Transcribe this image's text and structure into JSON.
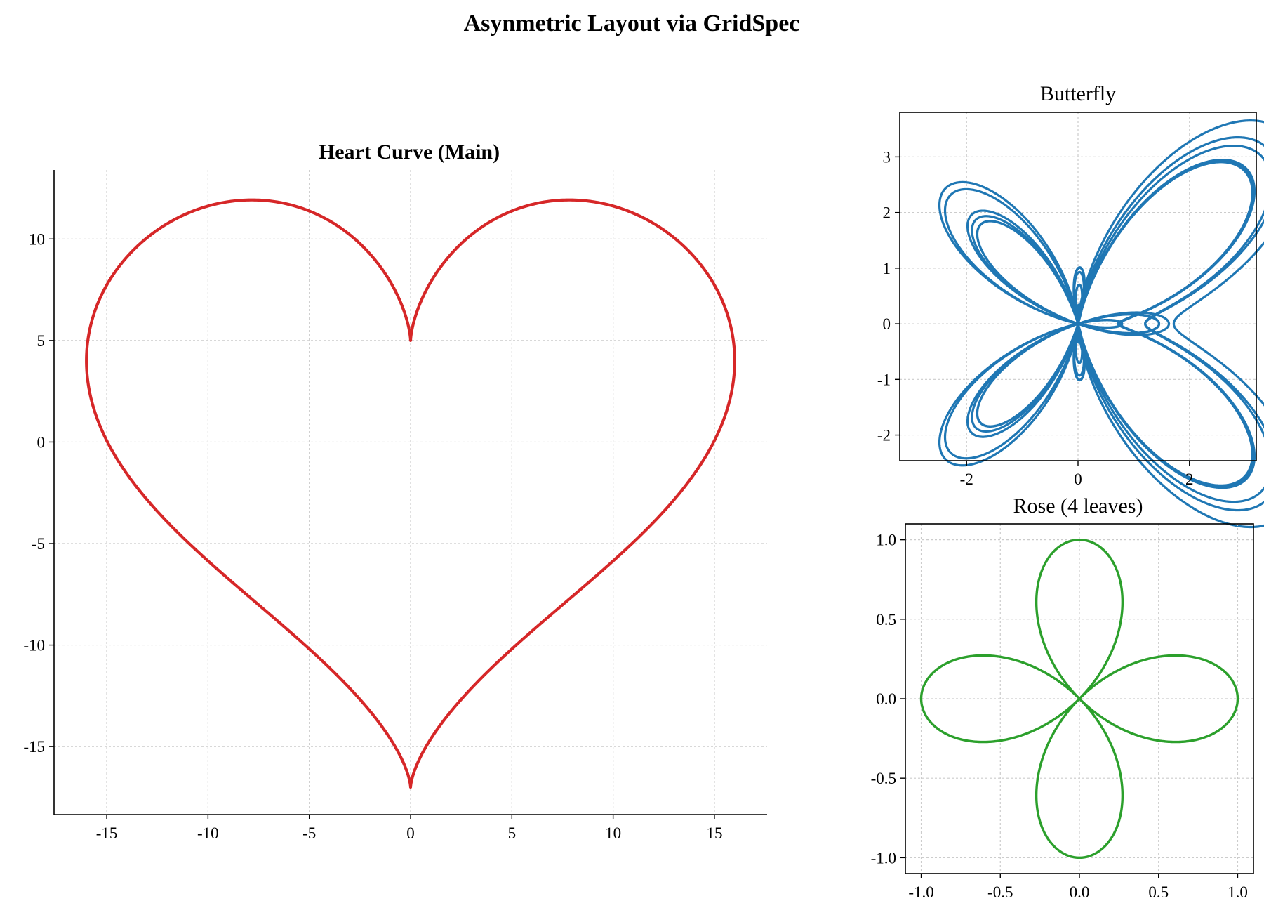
{
  "figure": {
    "suptitle": "Asynmetric Layout via GridSpec"
  },
  "chart_data": [
    {
      "id": "heart",
      "type": "line",
      "title": "Heart Curve (Main)",
      "title_bold": true,
      "function": "x = 16 sin^3(t), y = 13 cos t - 5 cos 2t - 2 cos 3t - cos 4t, t in [0, 2π]",
      "color": "#d62728",
      "xlim": [
        -17.6,
        17.6
      ],
      "ylim": [
        -18.35,
        13.4
      ],
      "xticks": [
        -15,
        -10,
        -5,
        0,
        5,
        10,
        15
      ],
      "xtick_labels": [
        "-15",
        "-10",
        "-5",
        "0",
        "5",
        "10",
        "15"
      ],
      "yticks": [
        -15,
        -10,
        -5,
        0,
        5,
        10
      ],
      "ytick_labels": [
        "-15",
        "-10",
        "-5",
        "0",
        "5",
        "10"
      ],
      "grid": true,
      "spines": "left-bottom"
    },
    {
      "id": "butterfly",
      "type": "line",
      "title": "Butterfly",
      "title_bold": false,
      "function": "r = e^{sin t} - 2 cos 4t + sin^5((2t - π)/24), x = r sin t, y = r cos t",
      "color": "#1f77b4",
      "xlim": [
        -3.2,
        3.2
      ],
      "ylim": [
        -2.46,
        3.8
      ],
      "xticks": [
        -2,
        0,
        2
      ],
      "xtick_labels": [
        "-2",
        "0",
        "2"
      ],
      "yticks": [
        -2,
        -1,
        0,
        1,
        2,
        3
      ],
      "ytick_labels": [
        "-2",
        "-1",
        "0",
        "1",
        "2",
        "3"
      ],
      "grid": true,
      "spines": "box"
    },
    {
      "id": "rose",
      "type": "line",
      "title": "Rose (4 leaves)",
      "title_bold": false,
      "function": "r = cos 2t, x = r cos t, y = r sin t",
      "color": "#2ca02c",
      "xlim": [
        -1.1,
        1.1
      ],
      "ylim": [
        -1.1,
        1.1
      ],
      "xticks": [
        -1.0,
        -0.5,
        0.0,
        0.5,
        1.0
      ],
      "xtick_labels": [
        "-1.0",
        "-0.5",
        "0.0",
        "0.5",
        "1.0"
      ],
      "yticks": [
        -1.0,
        -0.5,
        0.0,
        0.5,
        1.0
      ],
      "ytick_labels": [
        "-1.0",
        "-0.5",
        "0.0",
        "0.5",
        "1.0"
      ],
      "grid": true,
      "spines": "box"
    }
  ]
}
